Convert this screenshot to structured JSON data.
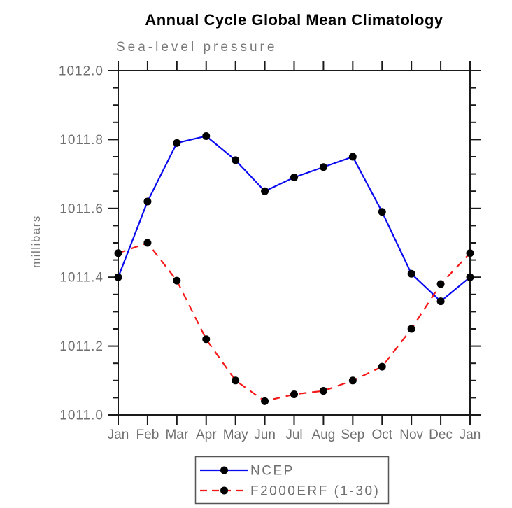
{
  "colors": {
    "axis": "#1a1a1a",
    "label": "#6f6f6f",
    "marker": "#000000",
    "ncep_blue": "#0a0af0",
    "model_red": "#f51818",
    "legend_border": "#555555",
    "background": "#ffffff"
  },
  "chart_data": {
    "type": "line",
    "title": "Annual Cycle Global Mean Climatology",
    "subtitle": "Sea-level pressure",
    "ylabel": "millibars",
    "xlabel": "",
    "categories": [
      "Jan",
      "Feb",
      "Mar",
      "Apr",
      "May",
      "Jun",
      "Jul",
      "Aug",
      "Sep",
      "Oct",
      "Nov",
      "Dec",
      "Jan"
    ],
    "series": [
      {
        "name": "NCEP",
        "style": "solid",
        "color": "#0a0af0",
        "marker": "black-dot",
        "values": [
          1011.4,
          1011.62,
          1011.79,
          1011.81,
          1011.74,
          1011.65,
          1011.69,
          1011.72,
          1011.75,
          1011.59,
          1011.41,
          1011.33,
          1011.4
        ]
      },
      {
        "name": "F2000ERF (1-30)",
        "style": "dashed",
        "color": "#f51818",
        "marker": "black-dot",
        "values": [
          1011.47,
          1011.5,
          1011.39,
          1011.22,
          1011.1,
          1011.04,
          1011.06,
          1011.07,
          1011.1,
          1011.14,
          1011.25,
          1011.38,
          1011.47
        ]
      }
    ],
    "ylim": [
      1011.0,
      1012.0
    ],
    "ytick_major": 0.2,
    "ytick_minor": 0.05,
    "ytick_decimals": 1,
    "grid": false,
    "legend_position": "bottom-center"
  },
  "legend": {
    "entries": [
      "NCEP",
      "F2000ERF (1-30)"
    ]
  }
}
